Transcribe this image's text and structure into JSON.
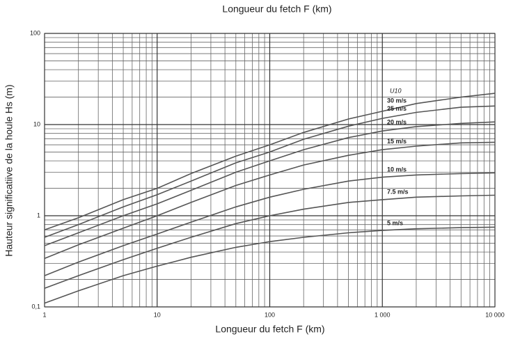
{
  "chart_data": {
    "type": "line",
    "title": "Longueur du fetch F (km)",
    "xlabel": "Longueur du fetch F (km)",
    "ylabel": "Hauteur significatiive de la houle Hs (m)",
    "legend_title": "U10",
    "xscale": "log",
    "yscale": "log",
    "grid": true,
    "xlim": [
      1,
      10000
    ],
    "ylim": [
      0.1,
      100
    ],
    "xticks": [
      1,
      10,
      100,
      {
        "value": 1000,
        "label": "1 000"
      },
      {
        "value": 10000,
        "label": "10 000"
      }
    ],
    "yticks": [
      {
        "value": 0.1,
        "label": "0,1"
      },
      1,
      10,
      100
    ],
    "xgrid": [
      2,
      3,
      4,
      5,
      6,
      7,
      8,
      9,
      20,
      30,
      40,
      50,
      60,
      70,
      80,
      90,
      200,
      300,
      400,
      500,
      600,
      700,
      800,
      900,
      2000,
      3000,
      4000,
      5000,
      6000,
      7000,
      8000,
      9000
    ],
    "ygrid": [
      0.2,
      0.3,
      0.4,
      0.5,
      0.6,
      0.7,
      0.8,
      0.9,
      2,
      3,
      4,
      5,
      6,
      7,
      8,
      9,
      20,
      30,
      40,
      50,
      60,
      70,
      80,
      90
    ],
    "x": [
      1,
      2,
      5,
      10,
      20,
      50,
      100,
      200,
      500,
      1000,
      2000,
      5000,
      10000
    ],
    "series": [
      {
        "name": "30 m/s",
        "color": "#555555",
        "values": [
          0.7,
          0.95,
          1.5,
          2.0,
          2.9,
          4.5,
          6.0,
          8.2,
          11.5,
          14,
          17,
          20,
          22
        ]
      },
      {
        "name": "25 m/s",
        "color": "#555555",
        "values": [
          0.58,
          0.8,
          1.25,
          1.7,
          2.4,
          3.8,
          5.0,
          6.9,
          9.6,
          11.7,
          13.6,
          15.5,
          16
        ]
      },
      {
        "name": "20 m/s",
        "color": "#555555",
        "values": [
          0.47,
          0.65,
          1.0,
          1.35,
          1.9,
          3.0,
          4.0,
          5.3,
          7.2,
          8.5,
          9.5,
          10.3,
          10.7
        ]
      },
      {
        "name": "15 m/s",
        "color": "#555555",
        "values": [
          0.34,
          0.48,
          0.73,
          1.0,
          1.4,
          2.15,
          2.8,
          3.6,
          4.6,
          5.3,
          5.8,
          6.3,
          6.4
        ]
      },
      {
        "name": "10 m/s",
        "color": "#555555",
        "values": [
          0.22,
          0.31,
          0.47,
          0.63,
          0.85,
          1.25,
          1.6,
          1.95,
          2.4,
          2.65,
          2.8,
          2.9,
          2.95
        ]
      },
      {
        "name": "7.5 m/s",
        "color": "#555555",
        "values": [
          0.16,
          0.22,
          0.33,
          0.44,
          0.58,
          0.82,
          1.0,
          1.18,
          1.4,
          1.5,
          1.6,
          1.65,
          1.68
        ]
      },
      {
        "name": "5 m/s",
        "color": "#555555",
        "values": [
          0.11,
          0.15,
          0.22,
          0.28,
          0.35,
          0.45,
          0.52,
          0.58,
          0.65,
          0.69,
          0.72,
          0.74,
          0.75
        ]
      }
    ]
  }
}
